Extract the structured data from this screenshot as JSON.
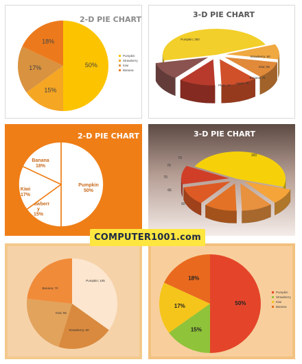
{
  "brand": {
    "label": "COMPUTER1001.com"
  },
  "chart_data": [
    {
      "type": "pie",
      "title": "2-D  PIE CHART",
      "categories": [
        "Pumpkin",
        "Strawberry",
        "Kiwi",
        "Banana"
      ],
      "values": [
        50,
        15,
        17,
        18
      ],
      "data_labels": [
        "50%",
        "15%",
        "17%",
        "18%"
      ],
      "legend": "right",
      "colors": [
        "#fcc400",
        "#f5a623",
        "#d9923f",
        "#ec7a1c"
      ]
    },
    {
      "type": "pie",
      "title": "3-D  PIE CHART",
      "categories": [
        "Pumpkin",
        "Strawberry",
        "Kiwi",
        "Banana",
        "Apple",
        "Plum"
      ],
      "values": [
        300,
        60,
        66,
        70,
        70,
        70
      ],
      "data_labels": [
        "Pumpkin; 300",
        "Strawberry; 60",
        "Kiwi; 66",
        "Banana; 70",
        "Apple; 70",
        "Plum; 70"
      ],
      "legend": "none",
      "colors": [
        "#f2cf2a",
        "#f0a840",
        "#e08a3a",
        "#d0502a",
        "#b83a2c",
        "#8a5350"
      ]
    },
    {
      "type": "pie",
      "title": "2-D  PIE CHART",
      "categories": [
        "Pumpkin",
        "Strawberry",
        "Kiwi",
        "Banana"
      ],
      "values": [
        50,
        15,
        17,
        18
      ],
      "data_labels": [
        "Pumpkin\n50%",
        "Strawberr\ny\n15%",
        "Kiwi\n17%",
        "Banana\n18%"
      ],
      "legend": "none",
      "colors": [
        "#ffffff",
        "#ffffff",
        "#ffffff",
        "#ffffff"
      ]
    },
    {
      "type": "pie",
      "title": "3-D PIE CHART",
      "categories": [
        "Pumpkin",
        "Strawberry",
        "Kiwi",
        "Banana",
        "Apple",
        "Plum"
      ],
      "values": [
        300,
        60,
        66,
        70,
        70,
        70
      ],
      "data_labels": [
        "300",
        "60",
        "66",
        "70",
        "70",
        "70"
      ],
      "legend": "none",
      "colors": [
        "#f6d10a",
        "#f5a43a",
        "#e8913e",
        "#e37226",
        "#dd5a24",
        "#d03e28"
      ]
    },
    {
      "type": "pie",
      "title": "",
      "categories": [
        "Pumpkin",
        "Strawberry",
        "Kiwi",
        "Banana"
      ],
      "values": [
        105,
        60,
        66,
        70
      ],
      "data_labels": [
        "Pumpkin; 105",
        "Strawberry; 60",
        "Kiwi; 66",
        "Banana; 70"
      ],
      "legend": "none",
      "colors": [
        "#fce6cf",
        "#d98a3e",
        "#e2a35c",
        "#f08b3a"
      ]
    },
    {
      "type": "pie",
      "title": "",
      "categories": [
        "Pumpkin",
        "Strawberry",
        "Kiwi",
        "Banana"
      ],
      "values": [
        50,
        15,
        17,
        18
      ],
      "data_labels": [
        "50%",
        "15%",
        "17%",
        "18%"
      ],
      "legend": "right",
      "colors": [
        "#e4452a",
        "#8fc33a",
        "#f5c51b",
        "#e96a1e"
      ]
    }
  ]
}
